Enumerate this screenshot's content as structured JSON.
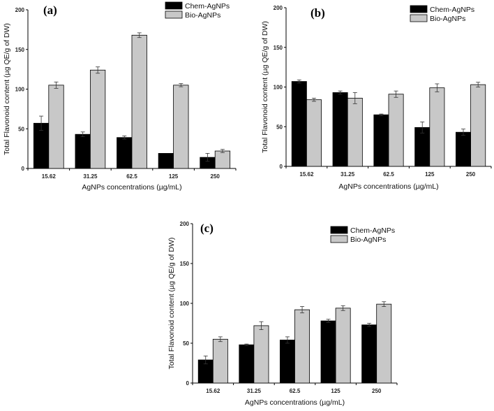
{
  "chart_data": [
    {
      "type": "bar",
      "panel_label": "(a)",
      "categories": [
        "15.62",
        "31.25",
        "62.5",
        "125",
        "250"
      ],
      "series": [
        {
          "name": "Chem-AgNPs",
          "color": "#000000",
          "values": [
            57,
            43,
            39,
            19,
            14
          ],
          "errors": [
            9,
            3,
            2,
            0,
            5
          ]
        },
        {
          "name": "Bio-AgNPs",
          "color": "#c8c8c8",
          "values": [
            105,
            124,
            168,
            105,
            22
          ],
          "errors": [
            4,
            4,
            3,
            2,
            2
          ]
        }
      ],
      "xlabel": "AgNPs concentrations (µg/mL)",
      "ylabel": "Total Flavonoid content (µg QE/g of DW)",
      "ylim": [
        0,
        200
      ],
      "yticks": [
        "0",
        "50",
        "100",
        "150",
        "200"
      ],
      "legend_position": "top-right"
    },
    {
      "type": "bar",
      "panel_label": "(b)",
      "categories": [
        "15.62",
        "31.25",
        "62.5",
        "125",
        "250"
      ],
      "series": [
        {
          "name": "Chem-AgNPs",
          "color": "#000000",
          "values": [
            107,
            93,
            65,
            49,
            43
          ],
          "errors": [
            2,
            2,
            1,
            7,
            4
          ]
        },
        {
          "name": "Bio-AgNPs",
          "color": "#c8c8c8",
          "values": [
            84,
            86,
            91,
            99,
            103
          ],
          "errors": [
            2,
            7,
            4,
            5,
            3
          ]
        }
      ],
      "xlabel": "AgNPs concentrations (µg/mL)",
      "ylabel": "Total Flavonoid content (µg QE/g of DW)",
      "ylim": [
        0,
        200
      ],
      "yticks": [
        "0",
        "50",
        "100",
        "150",
        "200"
      ],
      "legend_position": "top-right"
    },
    {
      "type": "bar",
      "panel_label": "(c)",
      "categories": [
        "15.62",
        "31.25",
        "62.5",
        "125",
        "250"
      ],
      "series": [
        {
          "name": "Chem-AgNPs",
          "color": "#000000",
          "values": [
            29,
            48,
            54,
            78,
            73
          ],
          "errors": [
            5,
            1,
            4,
            2,
            2
          ]
        },
        {
          "name": "Bio-AgNPs",
          "color": "#c8c8c8",
          "values": [
            55,
            72,
            92,
            94,
            99
          ],
          "errors": [
            3,
            5,
            4,
            3,
            3
          ]
        }
      ],
      "xlabel": "AgNPs concentrations (µg/mL)",
      "ylabel": "Total Flavonoid content (µg QE/g of DW)",
      "ylim": [
        0,
        200
      ],
      "yticks": [
        "0",
        "50",
        "100",
        "150",
        "200"
      ],
      "legend_position": "top-right"
    }
  ]
}
